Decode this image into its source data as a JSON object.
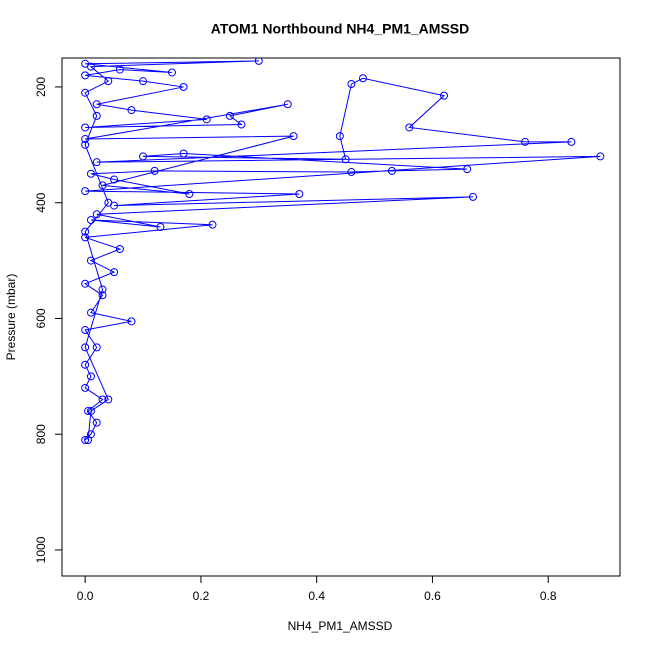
{
  "chart_data": {
    "type": "line",
    "title": "ATOM1 Northbound NH4_PM1_AMSSD",
    "x_label": "NH4_PM1_AMSSD",
    "y_label": "Pressure (mbar)",
    "color": "#0000ff",
    "x": [
      0.0,
      0.01,
      0.02,
      0.005,
      0.03,
      0.0,
      0.01,
      0.0,
      0.02,
      0.0,
      0.08,
      0.01,
      0.03,
      0.0,
      0.05,
      0.01,
      0.06,
      0.0,
      0.22,
      0.01,
      0.13,
      0.02,
      0.67,
      0.05,
      0.37,
      0.0,
      0.89,
      0.02,
      0.84,
      0.76,
      0.56,
      0.62,
      0.48,
      0.46,
      0.44,
      0.45,
      0.1,
      0.17,
      0.66,
      0.53,
      0.46,
      0.12,
      0.01,
      0.05,
      0.18,
      0.03,
      0.36,
      0.0,
      0.35,
      0.25,
      0.27,
      0.0,
      0.21,
      0.08,
      0.02,
      0.17,
      0.1,
      0.0,
      0.06,
      0.15,
      0.0,
      0.3,
      0.01,
      0.04,
      0.0,
      0.02,
      0.0,
      0.04,
      0.0,
      0.03,
      0.0,
      0.04,
      0.01,
      0.005
    ],
    "values": [
      810,
      800,
      780,
      760,
      740,
      720,
      700,
      680,
      650,
      620,
      605,
      590,
      560,
      540,
      520,
      500,
      480,
      460,
      438,
      430,
      442,
      420,
      390,
      405,
      385,
      380,
      320,
      330,
      295,
      295,
      270,
      215,
      185,
      195,
      285,
      325,
      320,
      315,
      342,
      345,
      347,
      345,
      350,
      360,
      385,
      370,
      285,
      290,
      230,
      250,
      265,
      270,
      256,
      240,
      230,
      200,
      190,
      180,
      170,
      175,
      160,
      155,
      165,
      190,
      210,
      250,
      300,
      400,
      450,
      550,
      650,
      740,
      760,
      810
    ],
    "xlim": [
      -0.04,
      0.924
    ],
    "ylim": [
      1045,
      150
    ],
    "xticks": [
      {
        "value": 0,
        "label": "0.0"
      },
      0.2,
      0.4,
      0.6,
      0.8
    ],
    "yticks": [
      200,
      400,
      600,
      800,
      1000
    ]
  }
}
